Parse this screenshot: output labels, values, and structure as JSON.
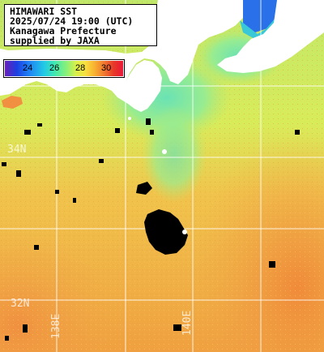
{
  "title_lines": [
    "HIMAWARI SST",
    "2025/07/24 19:00 (UTC)",
    "Kanagawa Prefecture",
    "supplied by JAXA"
  ],
  "legend": {
    "ticks": [
      "24",
      "26",
      "28",
      "30"
    ],
    "tick_values": [
      24,
      26,
      28,
      30
    ],
    "range": [
      22.5,
      31
    ]
  },
  "grid": {
    "lat_labels": [
      "34N",
      "32N"
    ],
    "lon_labels": [
      "138E",
      "140E"
    ]
  },
  "colors": {
    "land": "#ffffff",
    "cloud_mask": "#000000",
    "gridline": "#ffffff",
    "sea_warm": "#f0a040",
    "sea_mid": "#c8e860",
    "sea_cool": "#60e0b8"
  }
}
